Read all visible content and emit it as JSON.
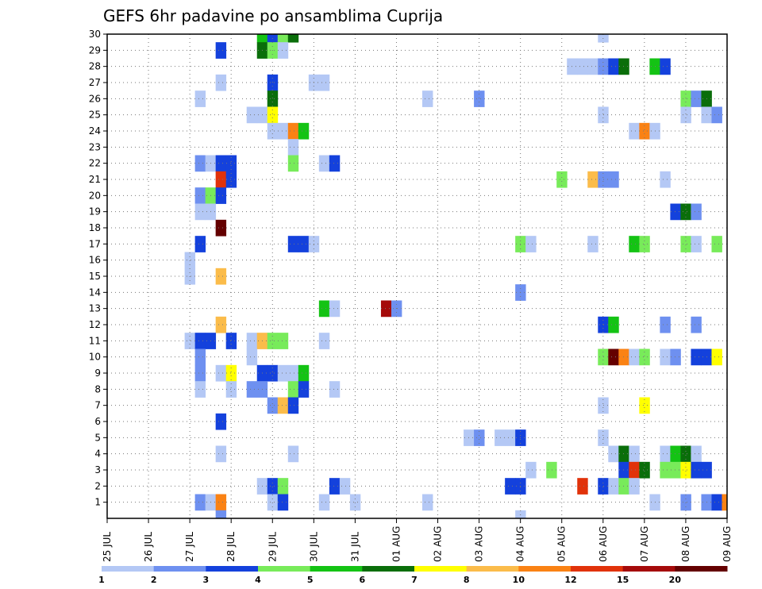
{
  "chart_data": {
    "type": "heatmap",
    "title": "GEFS 6hr padavine po ansamblima Cuprija",
    "x_tick_labels": [
      "25 JUL",
      "26 JUL",
      "27 JUL",
      "28 JUL",
      "29 JUL",
      "30 JUL",
      "31 JUL",
      "01 AUG",
      "02 AUG",
      "03 AUG",
      "04 AUG",
      "05 AUG",
      "06 AUG",
      "07 AUG",
      "08 AUG",
      "09 AUG"
    ],
    "y_tick_labels": [
      "1",
      "2",
      "3",
      "4",
      "5",
      "6",
      "7",
      "8",
      "9",
      "10",
      "11",
      "12",
      "13",
      "14",
      "15",
      "16",
      "17",
      "18",
      "19",
      "20",
      "21",
      "22",
      "23",
      "24",
      "25",
      "26",
      "27",
      "28",
      "29",
      "30"
    ],
    "x_range": [
      0,
      60
    ],
    "y_range": [
      0,
      30
    ],
    "grid": true,
    "legend": {
      "position": "bottom",
      "labels": [
        "1",
        "2",
        "3",
        "4",
        "5",
        "6",
        "7",
        "8",
        "10",
        "12",
        "15",
        "20"
      ],
      "colors": [
        "#b4c8f5",
        "#6e90f0",
        "#1441dc",
        "#78eb5a",
        "#14c314",
        "#0a6e0a",
        "#ffff00",
        "#fbbc4a",
        "#fa8214",
        "#e1320a",
        "#a50a0a",
        "#640000"
      ]
    },
    "unit_note": "x = 6-hour step index (4 per day) starting 25 JUL 00Z; y = ensemble member; v = color class index into legend.colors",
    "cells": [
      {
        "x": 15,
        "y": 30,
        "v": 4
      },
      {
        "x": 16,
        "y": 30,
        "v": 2
      },
      {
        "x": 17,
        "y": 30,
        "v": 3
      },
      {
        "x": 18,
        "y": 30,
        "v": 5
      },
      {
        "x": 48,
        "y": 30,
        "v": 0
      },
      {
        "x": 11,
        "y": 29,
        "v": 2
      },
      {
        "x": 15,
        "y": 29,
        "v": 5
      },
      {
        "x": 16,
        "y": 29,
        "v": 3
      },
      {
        "x": 17,
        "y": 29,
        "v": 0
      },
      {
        "x": 45,
        "y": 28,
        "v": 0
      },
      {
        "x": 46,
        "y": 28,
        "v": 0
      },
      {
        "x": 47,
        "y": 28,
        "v": 0
      },
      {
        "x": 48,
        "y": 28,
        "v": 1
      },
      {
        "x": 49,
        "y": 28,
        "v": 2
      },
      {
        "x": 50,
        "y": 28,
        "v": 5
      },
      {
        "x": 53,
        "y": 28,
        "v": 4
      },
      {
        "x": 54,
        "y": 28,
        "v": 2
      },
      {
        "x": 11,
        "y": 27,
        "v": 0
      },
      {
        "x": 16,
        "y": 27,
        "v": 2
      },
      {
        "x": 20,
        "y": 27,
        "v": 0
      },
      {
        "x": 21,
        "y": 27,
        "v": 0
      },
      {
        "x": 9,
        "y": 26,
        "v": 0
      },
      {
        "x": 16,
        "y": 26,
        "v": 5
      },
      {
        "x": 31,
        "y": 26,
        "v": 0
      },
      {
        "x": 36,
        "y": 26,
        "v": 1
      },
      {
        "x": 56,
        "y": 26,
        "v": 3
      },
      {
        "x": 57,
        "y": 26,
        "v": 1
      },
      {
        "x": 58,
        "y": 26,
        "v": 5
      },
      {
        "x": 14,
        "y": 25,
        "v": 0
      },
      {
        "x": 15,
        "y": 25,
        "v": 0
      },
      {
        "x": 16,
        "y": 25,
        "v": 6
      },
      {
        "x": 48,
        "y": 25,
        "v": 0
      },
      {
        "x": 56,
        "y": 25,
        "v": 0
      },
      {
        "x": 58,
        "y": 25,
        "v": 0
      },
      {
        "x": 59,
        "y": 25,
        "v": 1
      },
      {
        "x": 16,
        "y": 24,
        "v": 0
      },
      {
        "x": 17,
        "y": 24,
        "v": 0
      },
      {
        "x": 18,
        "y": 24,
        "v": 8
      },
      {
        "x": 19,
        "y": 24,
        "v": 4
      },
      {
        "x": 51,
        "y": 24,
        "v": 0
      },
      {
        "x": 52,
        "y": 24,
        "v": 8
      },
      {
        "x": 53,
        "y": 24,
        "v": 0
      },
      {
        "x": 18,
        "y": 23,
        "v": 0
      },
      {
        "x": 9,
        "y": 22,
        "v": 1
      },
      {
        "x": 10,
        "y": 22,
        "v": 0
      },
      {
        "x": 11,
        "y": 22,
        "v": 2
      },
      {
        "x": 12,
        "y": 22,
        "v": 2
      },
      {
        "x": 18,
        "y": 22,
        "v": 3
      },
      {
        "x": 21,
        "y": 22,
        "v": 0
      },
      {
        "x": 22,
        "y": 22,
        "v": 2
      },
      {
        "x": 11,
        "y": 21,
        "v": 9
      },
      {
        "x": 12,
        "y": 21,
        "v": 2
      },
      {
        "x": 44,
        "y": 21,
        "v": 3
      },
      {
        "x": 47,
        "y": 21,
        "v": 7
      },
      {
        "x": 48,
        "y": 21,
        "v": 1
      },
      {
        "x": 49,
        "y": 21,
        "v": 1
      },
      {
        "x": 54,
        "y": 21,
        "v": 0
      },
      {
        "x": 9,
        "y": 20,
        "v": 1
      },
      {
        "x": 10,
        "y": 20,
        "v": 3
      },
      {
        "x": 11,
        "y": 20,
        "v": 2
      },
      {
        "x": 9,
        "y": 19,
        "v": 0
      },
      {
        "x": 10,
        "y": 19,
        "v": 0
      },
      {
        "x": 55,
        "y": 19,
        "v": 2
      },
      {
        "x": 56,
        "y": 19,
        "v": 5
      },
      {
        "x": 57,
        "y": 19,
        "v": 1
      },
      {
        "x": 11,
        "y": 18,
        "v": 11
      },
      {
        "x": 9,
        "y": 17,
        "v": 2
      },
      {
        "x": 18,
        "y": 17,
        "v": 2
      },
      {
        "x": 19,
        "y": 17,
        "v": 2
      },
      {
        "x": 20,
        "y": 17,
        "v": 0
      },
      {
        "x": 40,
        "y": 17,
        "v": 3
      },
      {
        "x": 41,
        "y": 17,
        "v": 0
      },
      {
        "x": 47,
        "y": 17,
        "v": 0
      },
      {
        "x": 51,
        "y": 17,
        "v": 4
      },
      {
        "x": 52,
        "y": 17,
        "v": 3
      },
      {
        "x": 56,
        "y": 17,
        "v": 3
      },
      {
        "x": 57,
        "y": 17,
        "v": 0
      },
      {
        "x": 59,
        "y": 17,
        "v": 3
      },
      {
        "x": 8,
        "y": 16,
        "v": 0
      },
      {
        "x": 8,
        "y": 15,
        "v": 0
      },
      {
        "x": 11,
        "y": 15,
        "v": 7
      },
      {
        "x": 40,
        "y": 14,
        "v": 1
      },
      {
        "x": 21,
        "y": 13,
        "v": 4
      },
      {
        "x": 22,
        "y": 13,
        "v": 0
      },
      {
        "x": 27,
        "y": 13,
        "v": 10
      },
      {
        "x": 28,
        "y": 13,
        "v": 1
      },
      {
        "x": 11,
        "y": 12,
        "v": 7
      },
      {
        "x": 48,
        "y": 12,
        "v": 2
      },
      {
        "x": 49,
        "y": 12,
        "v": 4
      },
      {
        "x": 54,
        "y": 12,
        "v": 1
      },
      {
        "x": 57,
        "y": 12,
        "v": 1
      },
      {
        "x": 8,
        "y": 11,
        "v": 0
      },
      {
        "x": 9,
        "y": 11,
        "v": 2
      },
      {
        "x": 10,
        "y": 11,
        "v": 2
      },
      {
        "x": 12,
        "y": 11,
        "v": 2
      },
      {
        "x": 14,
        "y": 11,
        "v": 0
      },
      {
        "x": 15,
        "y": 11,
        "v": 7
      },
      {
        "x": 16,
        "y": 11,
        "v": 3
      },
      {
        "x": 17,
        "y": 11,
        "v": 3
      },
      {
        "x": 21,
        "y": 11,
        "v": 0
      },
      {
        "x": 9,
        "y": 10,
        "v": 1
      },
      {
        "x": 14,
        "y": 10,
        "v": 0
      },
      {
        "x": 48,
        "y": 10,
        "v": 3
      },
      {
        "x": 49,
        "y": 10,
        "v": 11
      },
      {
        "x": 50,
        "y": 10,
        "v": 8
      },
      {
        "x": 51,
        "y": 10,
        "v": 0
      },
      {
        "x": 52,
        "y": 10,
        "v": 3
      },
      {
        "x": 54,
        "y": 10,
        "v": 0
      },
      {
        "x": 55,
        "y": 10,
        "v": 1
      },
      {
        "x": 57,
        "y": 10,
        "v": 2
      },
      {
        "x": 58,
        "y": 10,
        "v": 2
      },
      {
        "x": 59,
        "y": 10,
        "v": 6
      },
      {
        "x": 9,
        "y": 9,
        "v": 1
      },
      {
        "x": 11,
        "y": 9,
        "v": 0
      },
      {
        "x": 12,
        "y": 9,
        "v": 6
      },
      {
        "x": 15,
        "y": 9,
        "v": 2
      },
      {
        "x": 16,
        "y": 9,
        "v": 2
      },
      {
        "x": 17,
        "y": 9,
        "v": 0
      },
      {
        "x": 18,
        "y": 9,
        "v": 0
      },
      {
        "x": 19,
        "y": 9,
        "v": 4
      },
      {
        "x": 9,
        "y": 8,
        "v": 0
      },
      {
        "x": 12,
        "y": 8,
        "v": 0
      },
      {
        "x": 14,
        "y": 8,
        "v": 1
      },
      {
        "x": 15,
        "y": 8,
        "v": 1
      },
      {
        "x": 18,
        "y": 8,
        "v": 3
      },
      {
        "x": 19,
        "y": 8,
        "v": 2
      },
      {
        "x": 22,
        "y": 8,
        "v": 0
      },
      {
        "x": 16,
        "y": 7,
        "v": 1
      },
      {
        "x": 17,
        "y": 7,
        "v": 7
      },
      {
        "x": 18,
        "y": 7,
        "v": 2
      },
      {
        "x": 48,
        "y": 7,
        "v": 0
      },
      {
        "x": 52,
        "y": 7,
        "v": 6
      },
      {
        "x": 11,
        "y": 6,
        "v": 2
      },
      {
        "x": 35,
        "y": 5,
        "v": 0
      },
      {
        "x": 36,
        "y": 5,
        "v": 1
      },
      {
        "x": 38,
        "y": 5,
        "v": 0
      },
      {
        "x": 39,
        "y": 5,
        "v": 0
      },
      {
        "x": 40,
        "y": 5,
        "v": 2
      },
      {
        "x": 48,
        "y": 5,
        "v": 0
      },
      {
        "x": 11,
        "y": 4,
        "v": 0
      },
      {
        "x": 18,
        "y": 4,
        "v": 0
      },
      {
        "x": 49,
        "y": 4,
        "v": 0
      },
      {
        "x": 50,
        "y": 4,
        "v": 5
      },
      {
        "x": 51,
        "y": 4,
        "v": 0
      },
      {
        "x": 54,
        "y": 4,
        "v": 0
      },
      {
        "x": 55,
        "y": 4,
        "v": 4
      },
      {
        "x": 56,
        "y": 4,
        "v": 5
      },
      {
        "x": 57,
        "y": 4,
        "v": 0
      },
      {
        "x": 41,
        "y": 3,
        "v": 0
      },
      {
        "x": 43,
        "y": 3,
        "v": 3
      },
      {
        "x": 50,
        "y": 3,
        "v": 2
      },
      {
        "x": 51,
        "y": 3,
        "v": 9
      },
      {
        "x": 52,
        "y": 3,
        "v": 5
      },
      {
        "x": 54,
        "y": 3,
        "v": 3
      },
      {
        "x": 55,
        "y": 3,
        "v": 3
      },
      {
        "x": 56,
        "y": 3,
        "v": 6
      },
      {
        "x": 57,
        "y": 3,
        "v": 2
      },
      {
        "x": 58,
        "y": 3,
        "v": 2
      },
      {
        "x": 15,
        "y": 2,
        "v": 0
      },
      {
        "x": 16,
        "y": 2,
        "v": 2
      },
      {
        "x": 17,
        "y": 2,
        "v": 3
      },
      {
        "x": 22,
        "y": 2,
        "v": 2
      },
      {
        "x": 23,
        "y": 2,
        "v": 0
      },
      {
        "x": 39,
        "y": 2,
        "v": 2
      },
      {
        "x": 40,
        "y": 2,
        "v": 2
      },
      {
        "x": 46,
        "y": 2,
        "v": 9
      },
      {
        "x": 48,
        "y": 2,
        "v": 2
      },
      {
        "x": 49,
        "y": 2,
        "v": 0
      },
      {
        "x": 50,
        "y": 2,
        "v": 3
      },
      {
        "x": 51,
        "y": 2,
        "v": 0
      },
      {
        "x": 9,
        "y": 1,
        "v": 1
      },
      {
        "x": 10,
        "y": 1,
        "v": 0
      },
      {
        "x": 11,
        "y": 1,
        "v": 8
      },
      {
        "x": 16,
        "y": 1,
        "v": 0
      },
      {
        "x": 17,
        "y": 1,
        "v": 2
      },
      {
        "x": 21,
        "y": 1,
        "v": 0
      },
      {
        "x": 24,
        "y": 1,
        "v": 0
      },
      {
        "x": 31,
        "y": 1,
        "v": 0
      },
      {
        "x": 53,
        "y": 1,
        "v": 0
      },
      {
        "x": 56,
        "y": 1,
        "v": 1
      },
      {
        "x": 58,
        "y": 1,
        "v": 1
      },
      {
        "x": 59,
        "y": 1,
        "v": 2
      },
      {
        "x": 60,
        "y": 1,
        "v": 8
      },
      {
        "x": 11,
        "y": 0,
        "v": 1
      },
      {
        "x": 40,
        "y": 0,
        "v": 0
      }
    ]
  }
}
